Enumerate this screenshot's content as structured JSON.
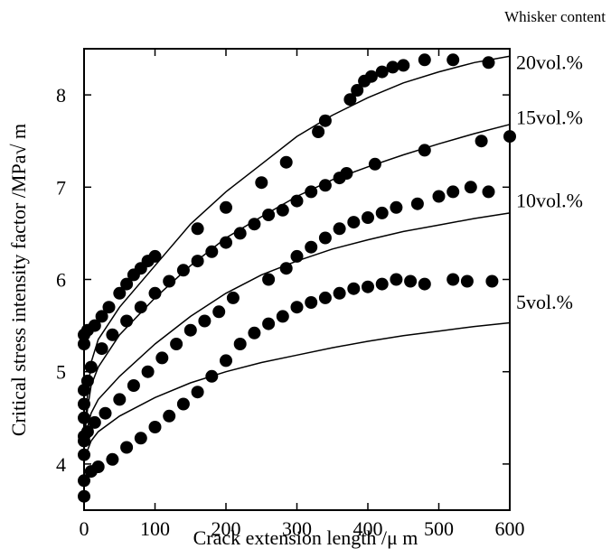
{
  "chart_data": {
    "type": "scatter",
    "title": "",
    "xlabel": "Crack extension length /μ m",
    "ylabel": "Critical stress intensity factor /MPa√ m",
    "legend_title": "Whisker content",
    "xlim": [
      0,
      600
    ],
    "ylim": [
      3.5,
      8.5
    ],
    "x_ticks": [
      0,
      100,
      200,
      300,
      400,
      500,
      600
    ],
    "y_ticks": [
      4,
      5,
      6,
      7,
      8
    ],
    "grid": false,
    "series": [
      {
        "name": "20vol.%",
        "curve": [
          [
            0,
            4.25
          ],
          [
            5,
            4.75
          ],
          [
            10,
            5.1
          ],
          [
            20,
            5.35
          ],
          [
            50,
            5.7
          ],
          [
            100,
            6.15
          ],
          [
            150,
            6.6
          ],
          [
            200,
            6.95
          ],
          [
            250,
            7.25
          ],
          [
            300,
            7.55
          ],
          [
            350,
            7.78
          ],
          [
            400,
            7.97
          ],
          [
            450,
            8.13
          ],
          [
            500,
            8.25
          ],
          [
            550,
            8.35
          ],
          [
            600,
            8.42
          ]
        ],
        "points": [
          [
            0,
            5.3
          ],
          [
            0,
            5.4
          ],
          [
            5,
            5.45
          ],
          [
            15,
            5.5
          ],
          [
            25,
            5.6
          ],
          [
            35,
            5.7
          ],
          [
            50,
            5.85
          ],
          [
            60,
            5.95
          ],
          [
            70,
            6.05
          ],
          [
            80,
            6.12
          ],
          [
            90,
            6.2
          ],
          [
            100,
            6.25
          ],
          [
            160,
            6.55
          ],
          [
            200,
            6.78
          ],
          [
            250,
            7.05
          ],
          [
            285,
            7.27
          ],
          [
            330,
            7.6
          ],
          [
            340,
            7.72
          ],
          [
            375,
            7.95
          ],
          [
            385,
            8.05
          ],
          [
            395,
            8.15
          ],
          [
            405,
            8.2
          ],
          [
            420,
            8.25
          ],
          [
            435,
            8.3
          ],
          [
            450,
            8.32
          ],
          [
            480,
            8.38
          ],
          [
            520,
            8.38
          ],
          [
            570,
            8.35
          ]
        ]
      },
      {
        "name": "15vol.%",
        "curve": [
          [
            0,
            4.25
          ],
          [
            5,
            4.6
          ],
          [
            10,
            4.85
          ],
          [
            20,
            5.05
          ],
          [
            50,
            5.4
          ],
          [
            100,
            5.8
          ],
          [
            150,
            6.15
          ],
          [
            200,
            6.45
          ],
          [
            250,
            6.68
          ],
          [
            300,
            6.9
          ],
          [
            350,
            7.08
          ],
          [
            400,
            7.22
          ],
          [
            450,
            7.35
          ],
          [
            500,
            7.47
          ],
          [
            550,
            7.58
          ],
          [
            600,
            7.68
          ]
        ],
        "points": [
          [
            0,
            4.3
          ],
          [
            0,
            4.5
          ],
          [
            0,
            4.65
          ],
          [
            0,
            4.8
          ],
          [
            5,
            4.9
          ],
          [
            10,
            5.05
          ],
          [
            25,
            5.25
          ],
          [
            40,
            5.4
          ],
          [
            60,
            5.55
          ],
          [
            80,
            5.7
          ],
          [
            100,
            5.85
          ],
          [
            120,
            5.98
          ],
          [
            140,
            6.1
          ],
          [
            160,
            6.2
          ],
          [
            180,
            6.3
          ],
          [
            200,
            6.4
          ],
          [
            220,
            6.5
          ],
          [
            240,
            6.6
          ],
          [
            260,
            6.7
          ],
          [
            280,
            6.75
          ],
          [
            300,
            6.85
          ],
          [
            320,
            6.95
          ],
          [
            340,
            7.02
          ],
          [
            360,
            7.1
          ],
          [
            370,
            7.15
          ],
          [
            410,
            7.25
          ],
          [
            480,
            7.4
          ],
          [
            560,
            7.5
          ],
          [
            600,
            7.55
          ]
        ]
      },
      {
        "name": "10vol.%",
        "curve": [
          [
            0,
            4.2
          ],
          [
            5,
            4.4
          ],
          [
            10,
            4.55
          ],
          [
            20,
            4.7
          ],
          [
            50,
            4.95
          ],
          [
            100,
            5.3
          ],
          [
            150,
            5.6
          ],
          [
            200,
            5.85
          ],
          [
            250,
            6.05
          ],
          [
            300,
            6.2
          ],
          [
            350,
            6.33
          ],
          [
            400,
            6.43
          ],
          [
            450,
            6.52
          ],
          [
            500,
            6.59
          ],
          [
            550,
            6.66
          ],
          [
            600,
            6.72
          ]
        ],
        "points": [
          [
            0,
            4.1
          ],
          [
            0,
            4.25
          ],
          [
            5,
            4.35
          ],
          [
            15,
            4.45
          ],
          [
            30,
            4.55
          ],
          [
            50,
            4.7
          ],
          [
            70,
            4.85
          ],
          [
            90,
            5.0
          ],
          [
            110,
            5.15
          ],
          [
            130,
            5.3
          ],
          [
            150,
            5.45
          ],
          [
            170,
            5.55
          ],
          [
            190,
            5.65
          ],
          [
            210,
            5.8
          ],
          [
            260,
            6.0
          ],
          [
            285,
            6.12
          ],
          [
            300,
            6.25
          ],
          [
            320,
            6.35
          ],
          [
            340,
            6.45
          ],
          [
            360,
            6.55
          ],
          [
            380,
            6.62
          ],
          [
            400,
            6.67
          ],
          [
            420,
            6.72
          ],
          [
            440,
            6.78
          ],
          [
            470,
            6.82
          ],
          [
            500,
            6.9
          ],
          [
            520,
            6.95
          ],
          [
            545,
            7.0
          ],
          [
            570,
            6.95
          ]
        ]
      },
      {
        "name": "5vol.%",
        "curve": [
          [
            0,
            4.05
          ],
          [
            5,
            4.15
          ],
          [
            10,
            4.25
          ],
          [
            20,
            4.35
          ],
          [
            50,
            4.52
          ],
          [
            100,
            4.72
          ],
          [
            150,
            4.88
          ],
          [
            200,
            5.0
          ],
          [
            250,
            5.1
          ],
          [
            300,
            5.18
          ],
          [
            350,
            5.26
          ],
          [
            400,
            5.33
          ],
          [
            450,
            5.39
          ],
          [
            500,
            5.44
          ],
          [
            550,
            5.49
          ],
          [
            600,
            5.53
          ]
        ],
        "points": [
          [
            0,
            3.65
          ],
          [
            0,
            3.82
          ],
          [
            10,
            3.92
          ],
          [
            20,
            3.97
          ],
          [
            40,
            4.05
          ],
          [
            60,
            4.18
          ],
          [
            80,
            4.28
          ],
          [
            100,
            4.4
          ],
          [
            120,
            4.52
          ],
          [
            140,
            4.65
          ],
          [
            160,
            4.78
          ],
          [
            180,
            4.95
          ],
          [
            200,
            5.12
          ],
          [
            220,
            5.3
          ],
          [
            240,
            5.42
          ],
          [
            260,
            5.52
          ],
          [
            280,
            5.6
          ],
          [
            300,
            5.7
          ],
          [
            320,
            5.75
          ],
          [
            340,
            5.8
          ],
          [
            360,
            5.85
          ],
          [
            380,
            5.9
          ],
          [
            400,
            5.92
          ],
          [
            420,
            5.95
          ],
          [
            440,
            6.0
          ],
          [
            460,
            5.98
          ],
          [
            480,
            5.95
          ],
          [
            520,
            6.0
          ],
          [
            540,
            5.98
          ],
          [
            575,
            5.98
          ]
        ]
      }
    ]
  }
}
